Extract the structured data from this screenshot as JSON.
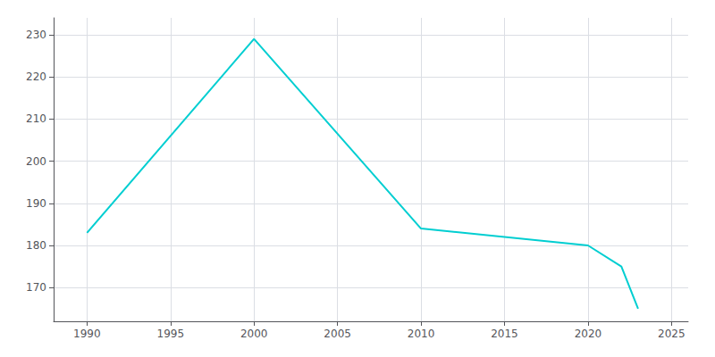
{
  "chart_data": {
    "type": "line",
    "x": [
      1990,
      2000,
      2010,
      2020,
      2022,
      2023
    ],
    "values": [
      183,
      229,
      184,
      180,
      175,
      165
    ],
    "color": "#00CED1",
    "xlim": [
      1988,
      2026
    ],
    "ylim": [
      162,
      234
    ],
    "xticks": [
      1990,
      1995,
      2000,
      2005,
      2010,
      2015,
      2020,
      2025
    ],
    "yticks": [
      170,
      180,
      190,
      200,
      210,
      220,
      230
    ],
    "grid": true
  }
}
